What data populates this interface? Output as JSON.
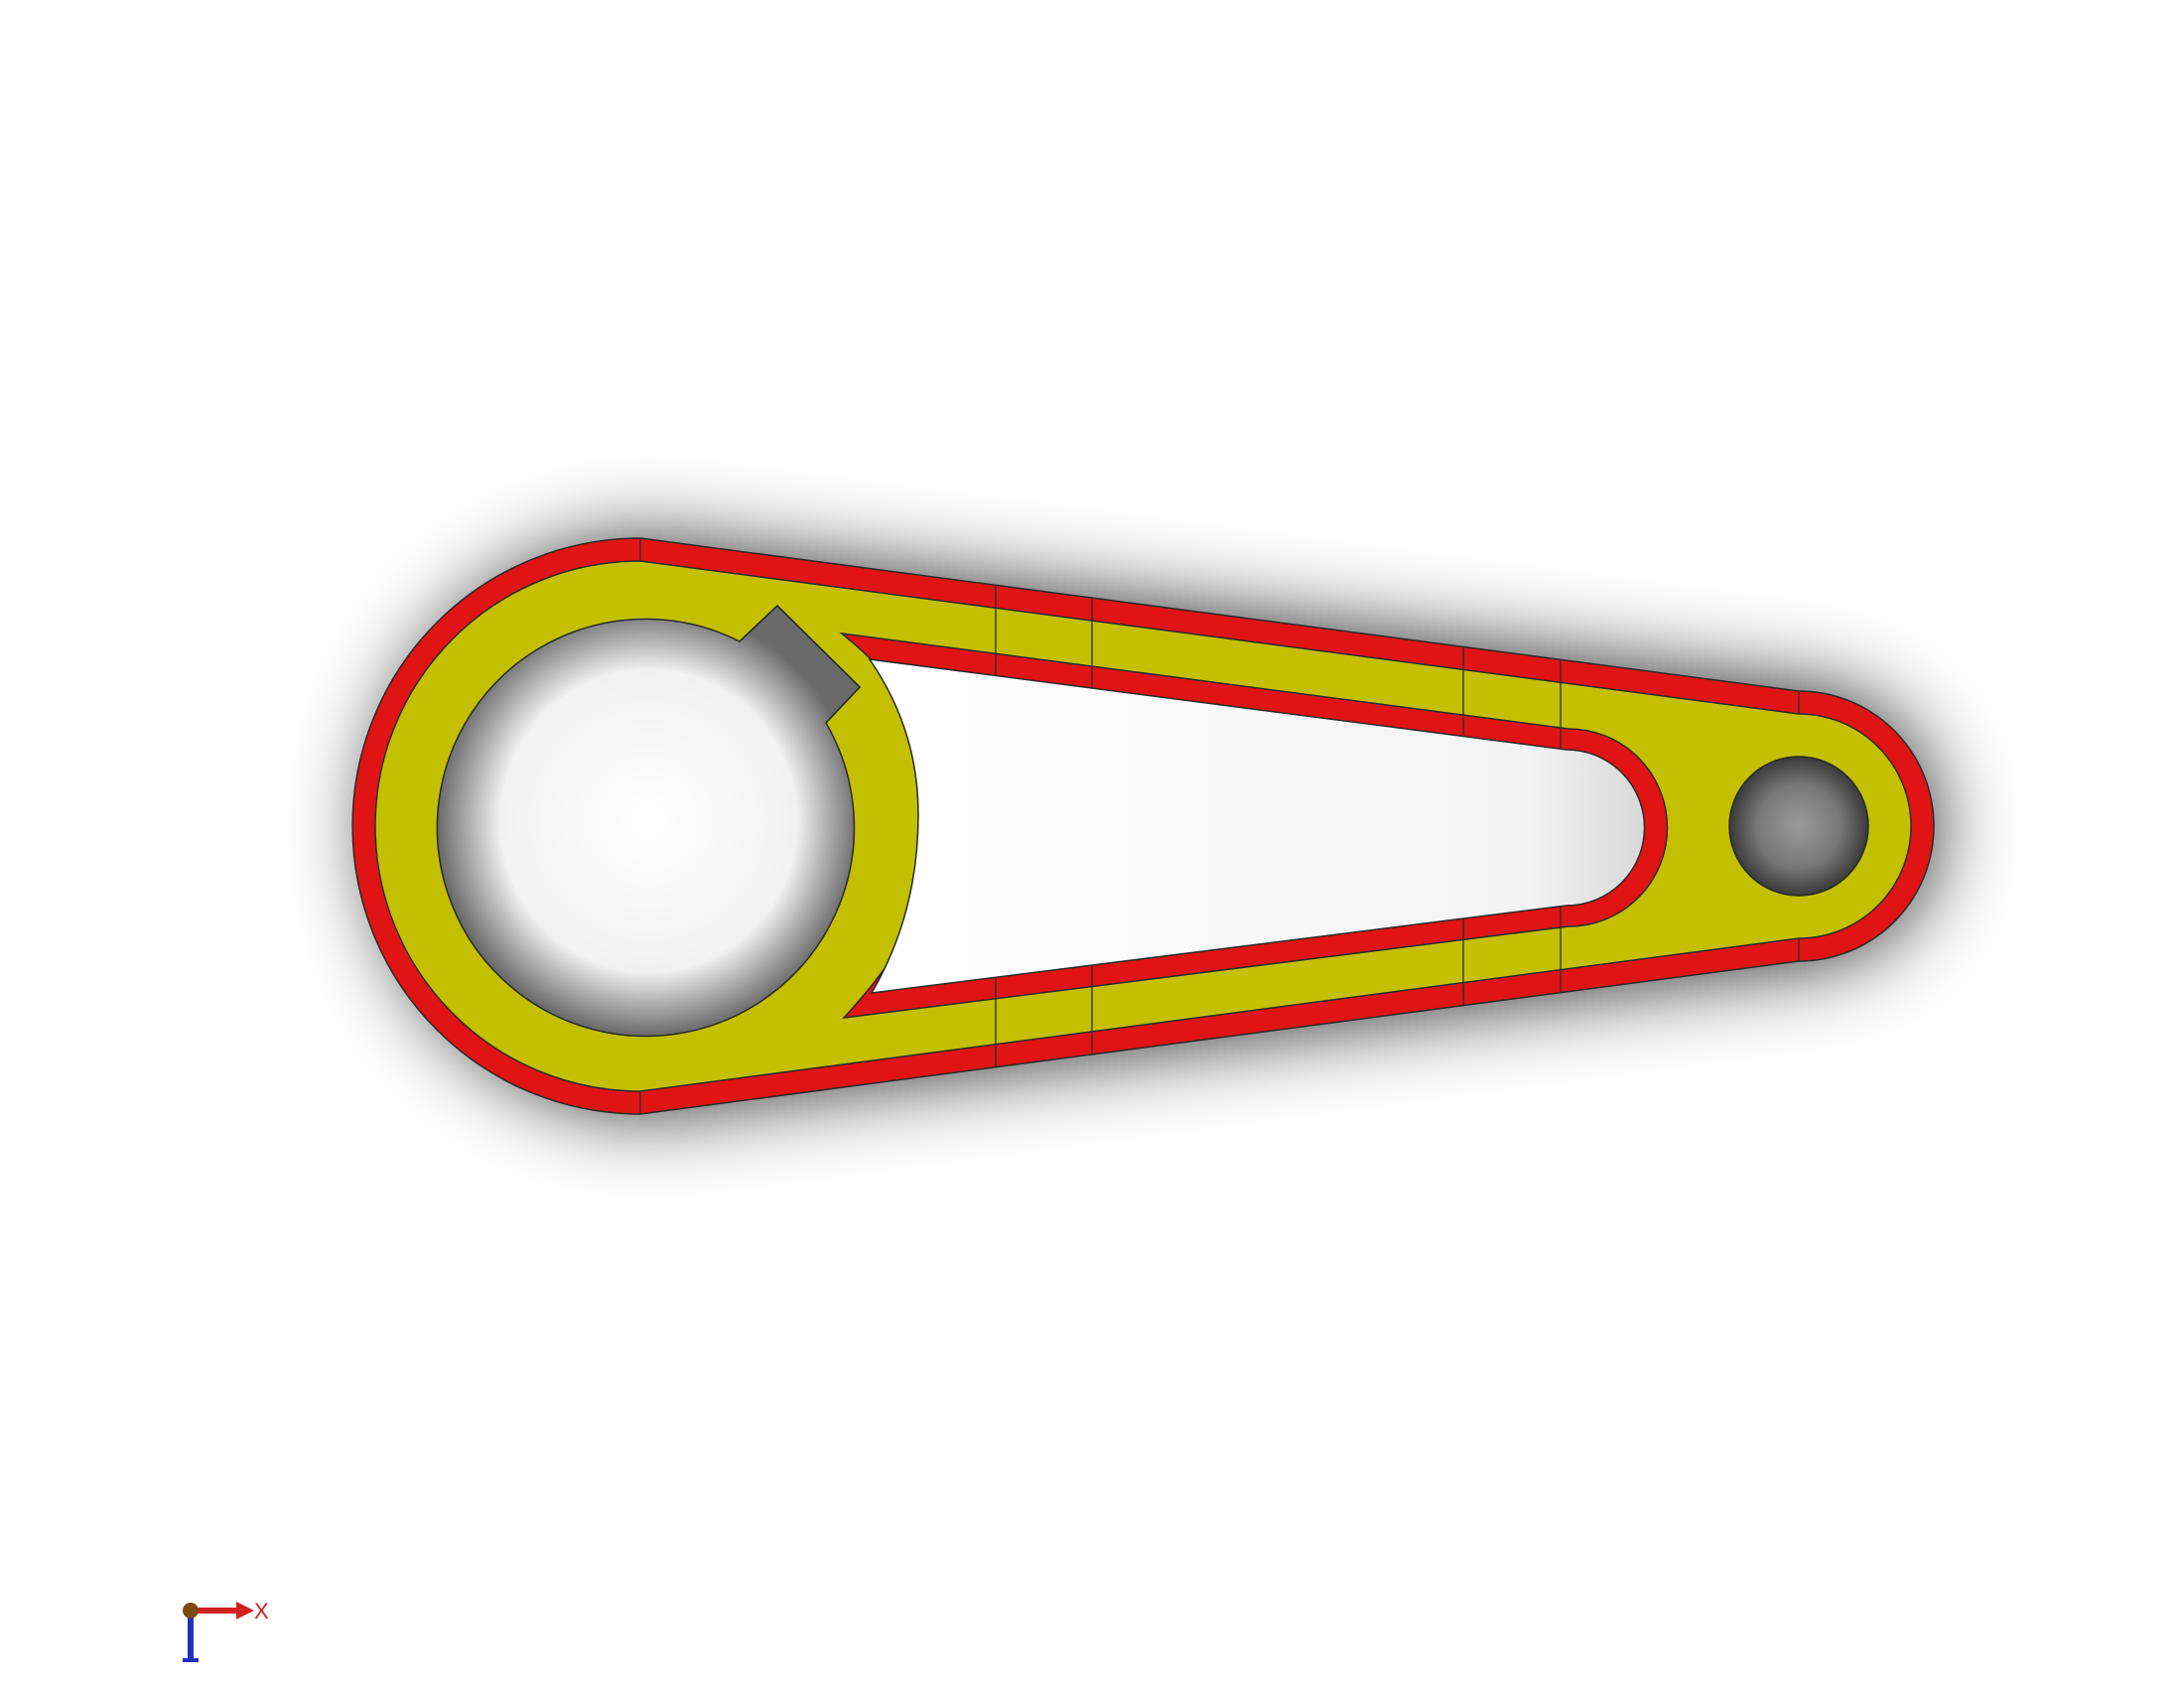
{
  "viewport": {
    "background_color": "#ffffff"
  },
  "part": {
    "face_color": "#c2c000",
    "fillet_color": "#e01414",
    "edge_color": "#2a2a2a",
    "icons": [
      "crank-arm-part-icon",
      "large-bore-icon",
      "keyway-icon",
      "slot-cutout-icon",
      "small-bore-icon"
    ]
  },
  "triad": {
    "x_label": "X",
    "x_color": "#d02020",
    "y_color": "#2030c0",
    "origin_color": "#7a4a10"
  }
}
